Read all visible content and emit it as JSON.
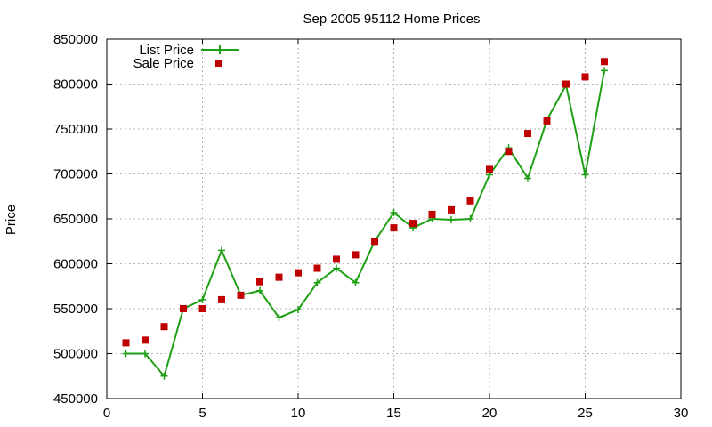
{
  "chart_data": {
    "type": "line",
    "title": "Sep 2005 95112 Home Prices",
    "xlabel": "",
    "ylabel": "Price",
    "xlim": [
      0,
      30
    ],
    "ylim": [
      450000,
      850000
    ],
    "xticks": [
      "0",
      "5",
      "10",
      "15",
      "20",
      "25",
      "30"
    ],
    "yticks": [
      "450000",
      "500000",
      "550000",
      "600000",
      "650000",
      "700000",
      "750000",
      "800000",
      "850000"
    ],
    "grid": true,
    "legend_position": "top-left",
    "series": [
      {
        "name": "List Price",
        "style": "line+plus",
        "color": "#1fa014",
        "x": [
          1,
          2,
          3,
          4,
          5,
          6,
          7,
          8,
          9,
          10,
          11,
          12,
          13,
          14,
          15,
          16,
          17,
          18,
          19,
          20,
          21,
          22,
          23,
          24,
          25,
          26
        ],
        "values": [
          500000,
          500000,
          475000,
          550000,
          560000,
          615000,
          565000,
          570000,
          540000,
          549000,
          579000,
          595000,
          579000,
          625000,
          657000,
          640000,
          650000,
          649000,
          650000,
          699000,
          729000,
          695000,
          760000,
          799000,
          699000,
          815000
        ]
      },
      {
        "name": "Sale Price",
        "style": "square",
        "color": "#c00000",
        "x": [
          1,
          2,
          3,
          4,
          5,
          6,
          7,
          8,
          9,
          10,
          11,
          12,
          13,
          14,
          15,
          16,
          17,
          18,
          19,
          20,
          21,
          22,
          23,
          24,
          25,
          26
        ],
        "values": [
          512000,
          515000,
          530000,
          550000,
          550000,
          560000,
          565000,
          580000,
          585000,
          590000,
          595000,
          605000,
          610000,
          625000,
          640000,
          645000,
          655000,
          660000,
          670000,
          705000,
          725000,
          745000,
          759000,
          800000,
          808000,
          825000
        ]
      }
    ]
  }
}
